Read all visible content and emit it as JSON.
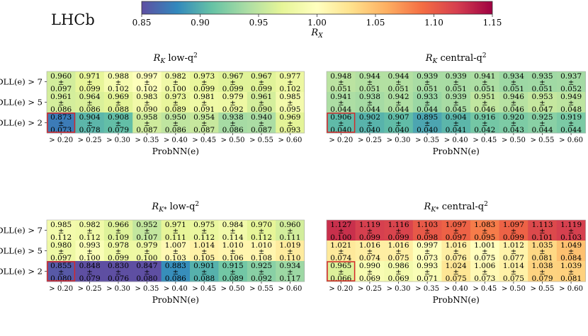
{
  "experiment_label": "LHCb",
  "colorbar": {
    "label": "R_X",
    "min": 0.85,
    "max": 1.15,
    "ticks": [
      "0.85",
      "0.90",
      "0.95",
      "1.00",
      "1.05",
      "1.10",
      "1.15"
    ],
    "colors": [
      "#5e4fa2",
      "#3288bd",
      "#66c2a5",
      "#abdda4",
      "#e6f598",
      "#ffffbf",
      "#fee08b",
      "#fdae61",
      "#f46d43",
      "#d53e4f",
      "#9e0142"
    ]
  },
  "highlight_color": "#d62728",
  "chart_data": [
    {
      "type": "heatmap",
      "title_main": "R",
      "title_sub": "K",
      "title_rest": " low-q",
      "title_sup": "2",
      "xlabel": "ProbNN(e)",
      "x_ticks": [
        "> 0.20",
        "> 0.25",
        "> 0.30",
        "> 0.35",
        "> 0.40",
        "> 0.45",
        "> 0.50",
        "> 0.55",
        "> 0.60"
      ],
      "y_ticks": [
        "DLL(e) > 7",
        "DLL(e) > 5",
        "DLL(e) > 2"
      ],
      "pm": "±",
      "values": [
        [
          0.96,
          0.971,
          0.988,
          0.997,
          0.982,
          0.973,
          0.967,
          0.967,
          0.977
        ],
        [
          0.961,
          0.964,
          0.969,
          0.983,
          0.973,
          0.981,
          0.979,
          0.961,
          0.985
        ],
        [
          0.873,
          0.904,
          0.908,
          0.958,
          0.95,
          0.954,
          0.938,
          0.94,
          0.969
        ]
      ],
      "errors": [
        [
          0.097,
          0.099,
          0.102,
          0.102,
          0.1,
          0.099,
          0.099,
          0.099,
          0.102
        ],
        [
          0.086,
          0.086,
          0.088,
          0.09,
          0.089,
          0.091,
          0.092,
          0.09,
          0.095
        ],
        [
          0.073,
          0.078,
          0.079,
          0.087,
          0.086,
          0.087,
          0.086,
          0.087,
          0.093
        ]
      ],
      "highlight": {
        "row": 2,
        "col": 0
      }
    },
    {
      "type": "heatmap",
      "title_main": "R",
      "title_sub": "K",
      "title_rest": " central-q",
      "title_sup": "2",
      "xlabel": "ProbNN(e)",
      "x_ticks": [
        "> 0.20",
        "> 0.25",
        "> 0.30",
        "> 0.35",
        "> 0.40",
        "> 0.45",
        "> 0.50",
        "> 0.55",
        "> 0.60"
      ],
      "y_ticks": [],
      "pm": "±",
      "values": [
        [
          0.948,
          0.944,
          0.944,
          0.939,
          0.939,
          0.941,
          0.934,
          0.935,
          0.937
        ],
        [
          0.941,
          0.938,
          0.942,
          0.933,
          0.939,
          0.951,
          0.946,
          0.953,
          0.949
        ],
        [
          0.906,
          0.902,
          0.907,
          0.895,
          0.904,
          0.916,
          0.92,
          0.925,
          0.919
        ]
      ],
      "errors": [
        [
          0.051,
          0.051,
          0.051,
          0.051,
          0.051,
          0.051,
          0.051,
          0.051,
          0.052
        ],
        [
          0.044,
          0.044,
          0.044,
          0.044,
          0.045,
          0.046,
          0.046,
          0.047,
          0.048
        ],
        [
          0.04,
          0.04,
          0.04,
          0.04,
          0.041,
          0.042,
          0.043,
          0.044,
          0.044
        ]
      ],
      "highlight": {
        "row": 2,
        "col": 0
      }
    },
    {
      "type": "heatmap",
      "title_main": "R",
      "title_sub": "K*",
      "title_rest": " low-q",
      "title_sup": "2",
      "xlabel": "ProbNN(e)",
      "x_ticks": [
        "> 0.20",
        "> 0.25",
        "> 0.30",
        "> 0.35",
        "> 0.40",
        "> 0.45",
        "> 0.50",
        "> 0.55",
        "> 0.60"
      ],
      "y_ticks": [
        "DLL(e) > 7",
        "DLL(e) > 5",
        "DLL(e) > 2"
      ],
      "pm": "±",
      "values": [
        [
          0.985,
          0.982,
          0.966,
          0.952,
          0.971,
          0.975,
          0.984,
          0.97,
          0.96
        ],
        [
          0.98,
          0.993,
          0.978,
          0.979,
          1.007,
          1.014,
          1.01,
          1.01,
          1.019
        ],
        [
          0.855,
          0.848,
          0.83,
          0.847,
          0.883,
          0.901,
          0.915,
          0.925,
          0.934
        ]
      ],
      "errors": [
        [
          0.112,
          0.112,
          0.109,
          0.107,
          0.111,
          0.112,
          0.114,
          0.112,
          0.111
        ],
        [
          0.097,
          0.1,
          0.099,
          0.1,
          0.103,
          0.105,
          0.106,
          0.108,
          0.11
        ],
        [
          0.08,
          0.079,
          0.076,
          0.08,
          0.086,
          0.088,
          0.089,
          0.092,
          0.117
        ]
      ],
      "highlight": {
        "row": 2,
        "col": 0
      }
    },
    {
      "type": "heatmap",
      "title_main": "R",
      "title_sub": "K*",
      "title_rest": " central-q",
      "title_sup": "2",
      "xlabel": "ProbNN(e)",
      "x_ticks": [
        "> 0.20",
        "> 0.25",
        "> 0.30",
        "> 0.35",
        "> 0.40",
        "> 0.45",
        "> 0.50",
        "> 0.55",
        "> 0.60"
      ],
      "y_ticks": [],
      "pm": "±",
      "values": [
        [
          1.127,
          1.119,
          1.116,
          1.103,
          1.097,
          1.083,
          1.097,
          1.113,
          1.119
        ],
        [
          1.021,
          1.016,
          1.016,
          0.997,
          1.016,
          1.001,
          1.012,
          1.035,
          1.049
        ],
        [
          0.965,
          0.99,
          0.986,
          0.993,
          1.024,
          1.006,
          1.014,
          1.038,
          1.039
        ]
      ],
      "errors": [
        [
          0.1,
          0.099,
          0.099,
          0.098,
          0.097,
          0.095,
          0.099,
          0.101,
          0.103
        ],
        [
          0.074,
          0.074,
          0.075,
          0.073,
          0.076,
          0.075,
          0.077,
          0.081,
          0.084
        ],
        [
          0.066,
          0.069,
          0.069,
          0.071,
          0.075,
          0.073,
          0.075,
          0.079,
          0.081
        ]
      ],
      "highlight": {
        "row": 2,
        "col": 0
      }
    }
  ]
}
